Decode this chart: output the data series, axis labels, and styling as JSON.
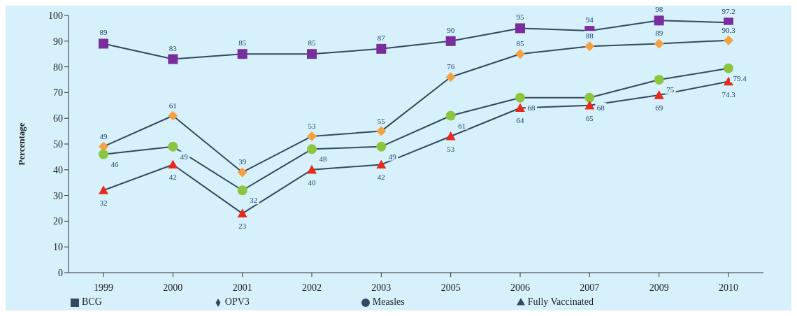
{
  "chart_data": {
    "type": "line",
    "ylabel": "Percentage",
    "categories": [
      "1999",
      "2000",
      "2001",
      "2002",
      "2003",
      "2005",
      "2006",
      "2007",
      "2009",
      "2010"
    ],
    "series": [
      {
        "name": "BCG",
        "color": "#7b2d9e",
        "marker": "square",
        "values": [
          89,
          83,
          85,
          85,
          87,
          90,
          95,
          94,
          98,
          97.2
        ]
      },
      {
        "name": "OPV3",
        "color": "#f5a142",
        "marker": "diamond",
        "values": [
          49,
          61,
          39,
          53,
          55,
          76,
          85,
          88,
          89,
          90.3
        ]
      },
      {
        "name": "Measles",
        "color": "#8cc63f",
        "marker": "circle",
        "values": [
          46,
          49,
          32,
          48,
          49,
          61,
          68,
          68,
          75,
          79.4
        ]
      },
      {
        "name": "Fully Vaccinated",
        "color": "#e8291c",
        "marker": "triangle",
        "values": [
          32,
          42,
          23,
          40,
          42,
          53,
          64,
          65,
          69,
          74.3
        ]
      }
    ],
    "ylim": [
      0,
      100
    ],
    "yticks": [
      0,
      10,
      20,
      30,
      40,
      50,
      60,
      70,
      80,
      90,
      100
    ],
    "grid": false,
    "legend": "bottom",
    "data_labels": true
  }
}
